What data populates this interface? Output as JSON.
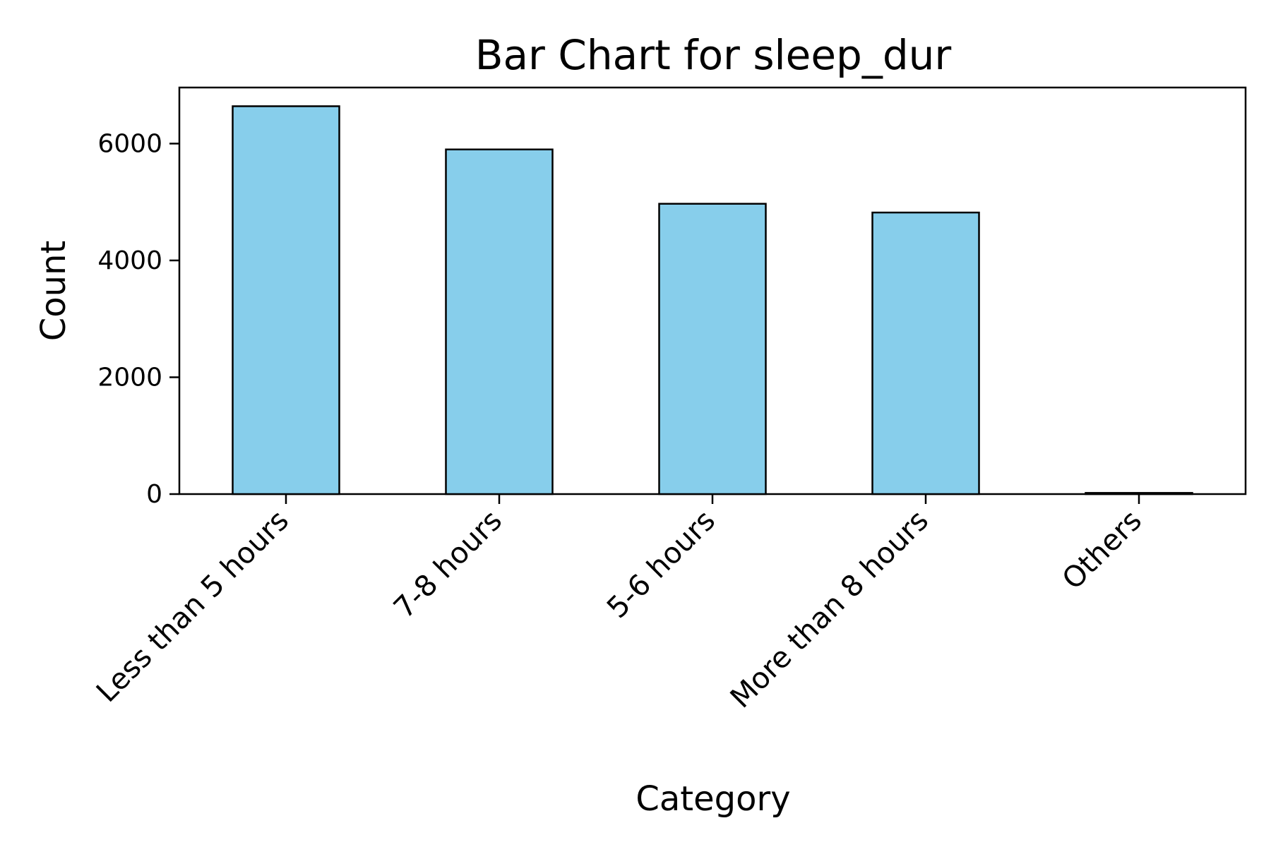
{
  "chart_data": {
    "type": "bar",
    "title": "Bar Chart for sleep_dur",
    "xlabel": "Category",
    "ylabel": "Count",
    "categories": [
      "Less than 5 hours",
      "7-8 hours",
      "5-6 hours",
      "More than 8 hours",
      "Others"
    ],
    "values": [
      6640,
      5900,
      4970,
      4820,
      20
    ],
    "ylim": [
      0,
      6960
    ],
    "yticks": [
      0,
      2000,
      4000,
      6000
    ],
    "ytick_labels": [
      "0",
      "2000",
      "4000",
      "6000"
    ],
    "grid": false,
    "legend": "none",
    "bar_color": "#87CEEB",
    "edge_color": "#000000"
  }
}
